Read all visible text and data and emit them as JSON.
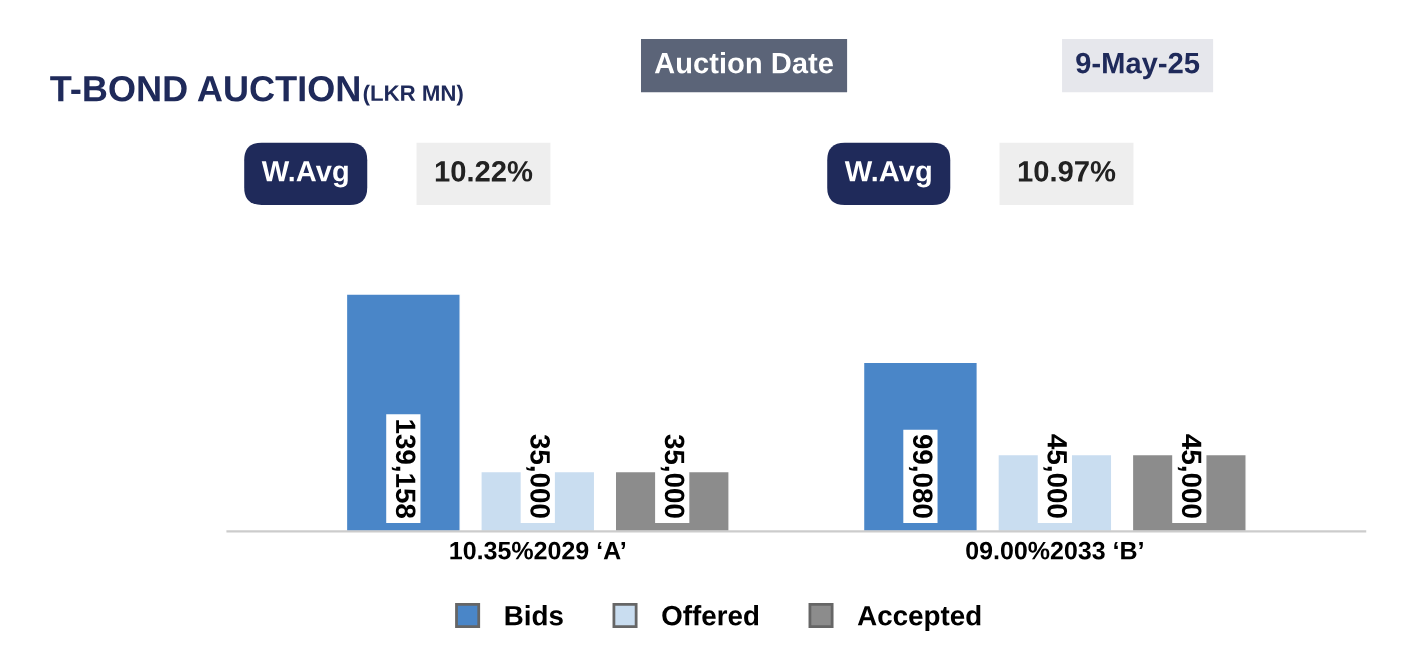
{
  "chart_data": {
    "type": "bar",
    "title": "T-BOND AUCTION",
    "subtitle": "(LKR MN)",
    "categories": [
      "10.35%2029 ‘A’",
      "09.00%2033 ‘B’"
    ],
    "series": [
      {
        "name": "Bids",
        "color": "#4a86c8",
        "values": [
          139158,
          99080
        ],
        "value_labels": [
          "139,158",
          "99,080"
        ]
      },
      {
        "name": "Offered",
        "color": "#c9ddf0",
        "values": [
          35000,
          45000
        ],
        "value_labels": [
          "35,000",
          "45,000"
        ]
      },
      {
        "name": "Accepted",
        "color": "#8c8c8c",
        "values": [
          35000,
          45000
        ],
        "value_labels": [
          "35,000",
          "45,000"
        ]
      }
    ],
    "annotations": [
      "Auction Date",
      "9-May-25",
      "W.Avg",
      "10.22%",
      "W.Avg",
      "10.97%"
    ],
    "legend": "bottom",
    "tick_labels": "x",
    "grid": false
  }
}
